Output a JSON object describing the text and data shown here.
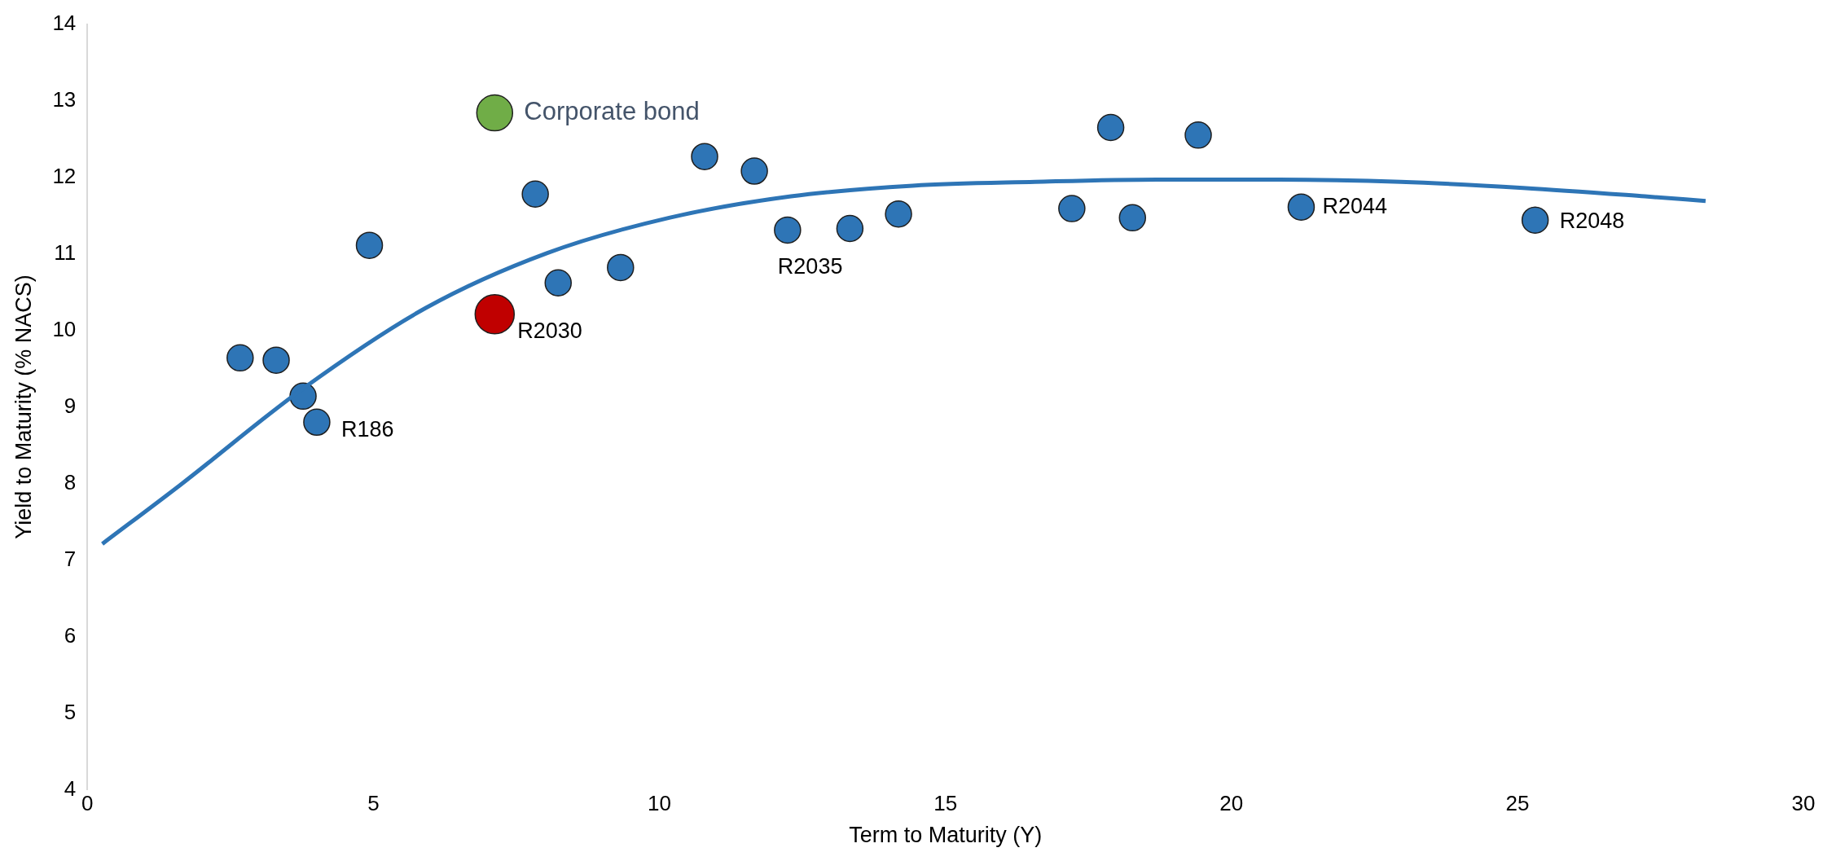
{
  "chart_data": {
    "type": "scatter",
    "xlabel": "Term to Maturity (Y)",
    "ylabel": "Yield to Maturity (% NACS)",
    "xlim": [
      0,
      30
    ],
    "xticks": [
      0,
      5,
      10,
      15,
      20,
      25,
      30
    ],
    "ylim": [
      4,
      14
    ],
    "yticks": [
      4,
      5,
      6,
      7,
      8,
      9,
      10,
      11,
      12,
      13,
      14
    ],
    "grid": false,
    "legend": false,
    "marker": "circle",
    "series": [
      {
        "type": "line",
        "color": "#2e75b6",
        "marker": "none",
        "x": [
          0.26,
          1.64,
          3.77,
          5.91,
          8.04,
          10.17,
          12.3,
          14.43,
          16.57,
          18.7,
          20.83,
          22.96,
          25.1,
          27.23,
          28.29
        ],
        "values": [
          7.21,
          7.99,
          9.24,
          10.29,
          11.01,
          11.47,
          11.75,
          11.89,
          11.94,
          11.97,
          11.97,
          11.94,
          11.86,
          11.75,
          11.69
        ]
      },
      {
        "color": "#2e75b6",
        "x": [
          2.67,
          3.3,
          3.77,
          4.01,
          4.93,
          7.83,
          8.23,
          9.32,
          10.79,
          11.66,
          12.24,
          13.33,
          14.18,
          17.21,
          17.89,
          18.27,
          19.42,
          21.22,
          25.31
        ],
        "values": [
          9.64,
          9.61,
          9.14,
          8.8,
          11.11,
          11.78,
          10.62,
          10.82,
          12.27,
          12.08,
          11.31,
          11.33,
          11.52,
          11.59,
          12.65,
          11.47,
          12.55,
          11.61,
          11.44
        ]
      },
      {
        "color": "#c00000",
        "x": [
          7.12
        ],
        "values": [
          10.21
        ]
      },
      {
        "name": "Corporate bond",
        "color": "#70ad47",
        "x": [
          7.12
        ],
        "values": [
          12.84
        ]
      }
    ],
    "annotations": [
      {
        "text": "R186",
        "x": 4.01,
        "y": 8.8
      },
      {
        "text": "R2030",
        "x": 7.12,
        "y": 10.21
      },
      {
        "text": "R2035",
        "x": 12.24,
        "y": 11.31
      },
      {
        "text": "R2044",
        "x": 21.22,
        "y": 11.61
      },
      {
        "text": "R2048",
        "x": 25.31,
        "y": 11.44
      }
    ]
  }
}
